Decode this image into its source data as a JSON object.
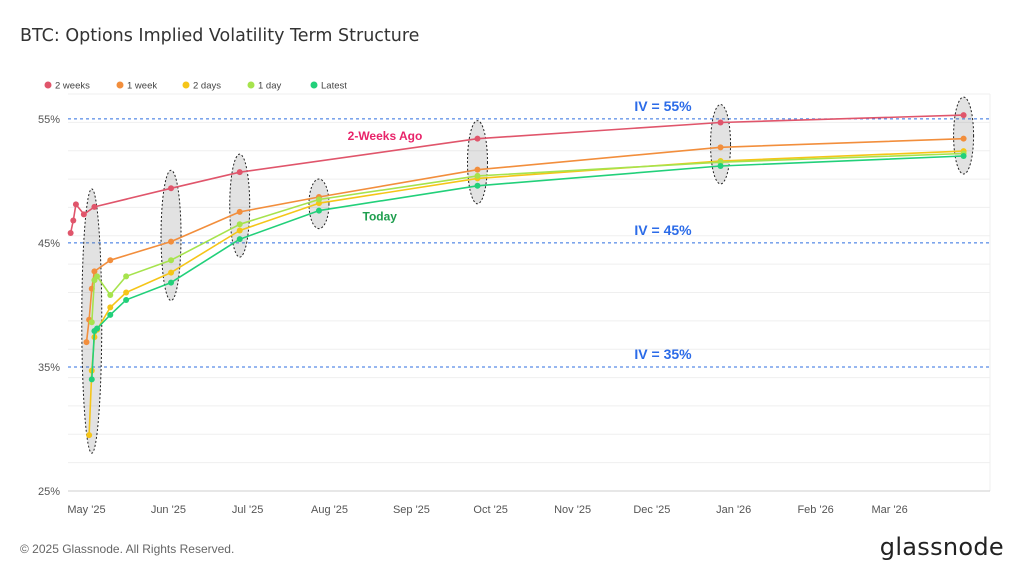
{
  "title": "BTC: Options Implied Volatility Term Structure",
  "footer": "© 2025 Glassnode. All Rights Reserved.",
  "brand": "glassnode",
  "chart_data": {
    "type": "line",
    "xlabel": "",
    "ylabel": "",
    "ylim": [
      25,
      57
    ],
    "y_ticks": [
      25,
      35,
      45,
      55
    ],
    "y_tick_labels": [
      "25%",
      "35%",
      "45%",
      "55%"
    ],
    "x_tick_labels": [
      "May '25",
      "Jun '25",
      "Jul '25",
      "Aug '25",
      "Sep '25",
      "Oct '25",
      "Nov '25",
      "Dec '25",
      "Jan '26",
      "Feb '26",
      "Mar '26"
    ],
    "x_tick_dates": [
      "2025-05-01",
      "2025-06-01",
      "2025-07-01",
      "2025-08-01",
      "2025-09-01",
      "2025-10-01",
      "2025-11-01",
      "2025-12-01",
      "2026-01-01",
      "2026-02-01",
      "2026-03-01"
    ],
    "xlim": [
      "2025-04-24",
      "2026-04-08"
    ],
    "legend_position": "top-left",
    "grid": "horizontal",
    "reference_lines": [
      {
        "y": 55,
        "label": "IV = 55%"
      },
      {
        "y": 45,
        "label": "IV = 45%"
      },
      {
        "y": 35,
        "label": "IV = 35%"
      }
    ],
    "annotations": [
      {
        "text": "2-Weeks Ago",
        "x": "2025-08-22",
        "y": 53.3,
        "color": "#e8246a"
      },
      {
        "text": "Today",
        "x": "2025-08-20",
        "y": 46.8,
        "color": "#1e9e4e"
      }
    ],
    "highlight_dates": [
      "2025-05-03",
      "2025-06-02",
      "2025-06-28",
      "2025-07-28",
      "2025-09-26",
      "2025-12-27",
      "2026-03-29"
    ],
    "series": [
      {
        "name": "2 weeks",
        "color": "#e0556b",
        "x": [
          "2025-04-25",
          "2025-04-26",
          "2025-04-27",
          "2025-04-30",
          "2025-05-04",
          "2025-06-02",
          "2025-06-28",
          "2025-09-26",
          "2025-12-27",
          "2026-03-29"
        ],
        "y": [
          45.8,
          46.8,
          48.1,
          47.3,
          47.9,
          49.4,
          50.7,
          53.4,
          54.7,
          55.3
        ]
      },
      {
        "name": "1 week",
        "color": "#f28e3c",
        "x": [
          "2025-05-01",
          "2025-05-02",
          "2025-05-03",
          "2025-05-04",
          "2025-05-10",
          "2025-06-02",
          "2025-06-28",
          "2025-07-28",
          "2025-09-26",
          "2025-12-27",
          "2026-03-29"
        ],
        "y": [
          37.0,
          38.8,
          41.3,
          42.7,
          43.6,
          45.1,
          47.5,
          48.7,
          50.9,
          52.7,
          53.4
        ]
      },
      {
        "name": "2 days",
        "color": "#f5c518",
        "x": [
          "2025-05-02",
          "2025-05-03",
          "2025-05-04",
          "2025-05-05",
          "2025-05-10",
          "2025-05-16",
          "2025-06-02",
          "2025-06-28",
          "2025-07-28",
          "2025-09-26",
          "2025-12-27",
          "2026-03-29"
        ],
        "y": [
          29.5,
          34.7,
          37.4,
          38.0,
          39.8,
          41.0,
          42.6,
          46.0,
          48.2,
          50.2,
          51.6,
          52.4
        ]
      },
      {
        "name": "1 day",
        "color": "#a6e34d",
        "x": [
          "2025-05-03",
          "2025-05-04",
          "2025-05-05",
          "2025-05-10",
          "2025-05-16",
          "2025-06-02",
          "2025-06-28",
          "2025-07-28",
          "2025-09-26",
          "2025-12-27",
          "2026-03-29"
        ],
        "y": [
          38.6,
          42.0,
          42.3,
          40.8,
          42.3,
          43.6,
          46.5,
          48.5,
          50.4,
          51.5,
          52.2
        ]
      },
      {
        "name": "Latest",
        "color": "#22d07a",
        "x": [
          "2025-05-03",
          "2025-05-04",
          "2025-05-05",
          "2025-05-10",
          "2025-05-16",
          "2025-06-02",
          "2025-06-28",
          "2025-07-28",
          "2025-09-26",
          "2025-12-27",
          "2026-03-29"
        ],
        "y": [
          34.0,
          37.9,
          38.1,
          39.2,
          40.4,
          41.8,
          45.3,
          47.6,
          49.6,
          51.2,
          52.0
        ]
      }
    ]
  }
}
